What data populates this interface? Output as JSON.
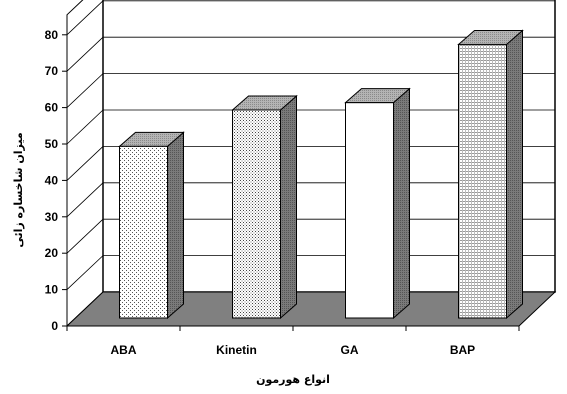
{
  "chart_data": {
    "type": "bar",
    "categories": [
      "ABA",
      "Kinetin",
      "GA",
      "BAP"
    ],
    "values": [
      51,
      61,
      63,
      79
    ],
    "xlabel": "انواع هورمون",
    "ylabel": "میزان شاخساره زائی",
    "ylim": [
      0,
      80
    ],
    "yticks": [
      0,
      10,
      20,
      30,
      40,
      50,
      60,
      70,
      80
    ],
    "grid": true,
    "legend": "none",
    "three_d": true,
    "bar_fills": [
      "dots",
      "dots-dense",
      "plain",
      "hatch"
    ],
    "colors": {
      "floor": "#808080",
      "wall": "#ffffff",
      "grid": "#000000",
      "bar_front": "#ffffff",
      "bar_side": "#7f7f7f",
      "bar_top": "#b0b0b0"
    }
  }
}
